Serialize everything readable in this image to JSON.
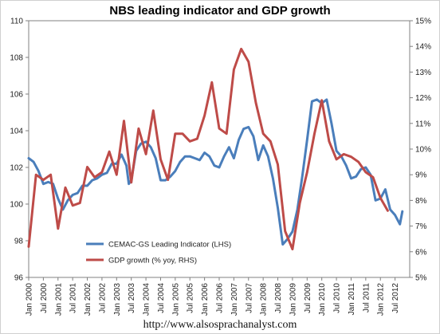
{
  "chart_data": {
    "type": "line",
    "title": "NBS leading indicator and GDP growth",
    "source": "http://www.alsosprachanalyst.com",
    "x_ticks": [
      "Jan 2000",
      "Jul 2000",
      "Jan 2001",
      "Jul 2001",
      "Jan 2002",
      "Jul 2002",
      "Jan 2003",
      "Jul 2003",
      "Jan 2004",
      "Jul 2004",
      "Jan 2005",
      "Jul 2005",
      "Jan 2006",
      "Jul 2006",
      "Jan 2007",
      "Jul 2007",
      "Jan 2008",
      "Jul 2008",
      "Jan 2009",
      "Jul 2009",
      "Jan 2010",
      "Jul 2010",
      "Jan 2011",
      "Jul 2011",
      "Jan 2012",
      "Jul 2012"
    ],
    "y_left": {
      "min": 96,
      "max": 110,
      "step": 2,
      "ticks": [
        "96",
        "98",
        "100",
        "102",
        "104",
        "106",
        "108",
        "110"
      ]
    },
    "y_right": {
      "min": 5,
      "max": 15,
      "step": 1,
      "ticks": [
        "5%",
        "6%",
        "7%",
        "8%",
        "9%",
        "10%",
        "11%",
        "12%",
        "13%",
        "14%",
        "15%"
      ]
    },
    "series": [
      {
        "name": "CEMAC-GS Leading Indicator (LHS)",
        "axis": "left",
        "color": "#4a7ebb",
        "points": [
          [
            "2000-01",
            102.5
          ],
          [
            "2000-03",
            102.3
          ],
          [
            "2000-05",
            101.8
          ],
          [
            "2000-07",
            101.1
          ],
          [
            "2000-09",
            101.2
          ],
          [
            "2000-11",
            101.1
          ],
          [
            "2001-01",
            100.3
          ],
          [
            "2001-03",
            99.7
          ],
          [
            "2001-05",
            100.2
          ],
          [
            "2001-07",
            100.5
          ],
          [
            "2001-09",
            100.6
          ],
          [
            "2001-11",
            101.0
          ],
          [
            "2002-01",
            101.0
          ],
          [
            "2002-03",
            101.3
          ],
          [
            "2002-05",
            101.4
          ],
          [
            "2002-07",
            101.6
          ],
          [
            "2002-09",
            101.7
          ],
          [
            "2002-11",
            102.2
          ],
          [
            "2003-01",
            102.2
          ],
          [
            "2003-03",
            102.7
          ],
          [
            "2003-05",
            102.1
          ],
          [
            "2003-06",
            101.1
          ],
          [
            "2003-07",
            101.3
          ],
          [
            "2003-09",
            102.9
          ],
          [
            "2003-11",
            103.3
          ],
          [
            "2004-01",
            103.4
          ],
          [
            "2004-03",
            103.1
          ],
          [
            "2004-05",
            102.5
          ],
          [
            "2004-07",
            101.3
          ],
          [
            "2004-09",
            101.3
          ],
          [
            "2004-11",
            101.5
          ],
          [
            "2005-01",
            101.8
          ],
          [
            "2005-03",
            102.3
          ],
          [
            "2005-05",
            102.6
          ],
          [
            "2005-07",
            102.6
          ],
          [
            "2005-09",
            102.5
          ],
          [
            "2005-11",
            102.4
          ],
          [
            "2006-01",
            102.8
          ],
          [
            "2006-03",
            102.6
          ],
          [
            "2006-05",
            102.1
          ],
          [
            "2006-07",
            102.0
          ],
          [
            "2006-09",
            102.6
          ],
          [
            "2006-11",
            103.1
          ],
          [
            "2007-01",
            102.5
          ],
          [
            "2007-03",
            103.5
          ],
          [
            "2007-05",
            104.1
          ],
          [
            "2007-07",
            104.2
          ],
          [
            "2007-09",
            103.7
          ],
          [
            "2007-11",
            102.4
          ],
          [
            "2008-01",
            103.2
          ],
          [
            "2008-03",
            102.6
          ],
          [
            "2008-05",
            101.4
          ],
          [
            "2008-07",
            99.8
          ],
          [
            "2008-09",
            97.8
          ],
          [
            "2008-11",
            98.1
          ],
          [
            "2009-01",
            98.5
          ],
          [
            "2009-03",
            99.7
          ],
          [
            "2009-05",
            101.5
          ],
          [
            "2009-07",
            103.5
          ],
          [
            "2009-09",
            105.6
          ],
          [
            "2009-11",
            105.7
          ],
          [
            "2010-01",
            105.5
          ],
          [
            "2010-03",
            105.7
          ],
          [
            "2010-05",
            104.4
          ],
          [
            "2010-07",
            102.9
          ],
          [
            "2010-09",
            102.6
          ],
          [
            "2010-11",
            102.1
          ],
          [
            "2011-01",
            101.4
          ],
          [
            "2011-03",
            101.5
          ],
          [
            "2011-05",
            101.9
          ],
          [
            "2011-07",
            102.0
          ],
          [
            "2011-09",
            101.6
          ],
          [
            "2011-11",
            100.2
          ],
          [
            "2012-01",
            100.3
          ],
          [
            "2012-03",
            100.8
          ],
          [
            "2012-05",
            99.7
          ],
          [
            "2012-07",
            99.4
          ],
          [
            "2012-09",
            98.9
          ],
          [
            "2012-10",
            99.6
          ]
        ]
      },
      {
        "name": "GDP growth (% yoy, RHS)",
        "axis": "right",
        "color": "#be4b48",
        "points": [
          [
            "2000-01",
            6.2
          ],
          [
            "2000-04",
            9.0
          ],
          [
            "2000-07",
            8.8
          ],
          [
            "2000-10",
            9.0
          ],
          [
            "2001-01",
            6.9
          ],
          [
            "2001-04",
            8.5
          ],
          [
            "2001-07",
            7.8
          ],
          [
            "2001-10",
            7.9
          ],
          [
            "2002-01",
            9.3
          ],
          [
            "2002-04",
            8.9
          ],
          [
            "2002-07",
            9.1
          ],
          [
            "2002-10",
            9.9
          ],
          [
            "2003-01",
            9.0
          ],
          [
            "2003-04",
            11.1
          ],
          [
            "2003-07",
            8.7
          ],
          [
            "2003-10",
            10.8
          ],
          [
            "2004-01",
            9.8
          ],
          [
            "2004-04",
            11.5
          ],
          [
            "2004-07",
            9.6
          ],
          [
            "2004-10",
            8.8
          ],
          [
            "2005-01",
            10.6
          ],
          [
            "2005-04",
            10.6
          ],
          [
            "2005-07",
            10.3
          ],
          [
            "2005-10",
            10.4
          ],
          [
            "2006-01",
            11.3
          ],
          [
            "2006-04",
            12.6
          ],
          [
            "2006-07",
            10.8
          ],
          [
            "2006-10",
            10.6
          ],
          [
            "2007-01",
            13.1
          ],
          [
            "2007-04",
            13.9
          ],
          [
            "2007-07",
            13.4
          ],
          [
            "2007-10",
            11.8
          ],
          [
            "2008-01",
            10.6
          ],
          [
            "2008-04",
            10.3
          ],
          [
            "2008-07",
            9.4
          ],
          [
            "2008-10",
            6.8
          ],
          [
            "2009-01",
            6.1
          ],
          [
            "2009-04",
            7.9
          ],
          [
            "2009-07",
            9.1
          ],
          [
            "2009-10",
            10.6
          ],
          [
            "2010-01",
            11.9
          ],
          [
            "2010-04",
            10.3
          ],
          [
            "2010-07",
            9.6
          ],
          [
            "2010-10",
            9.8
          ],
          [
            "2011-01",
            9.7
          ],
          [
            "2011-04",
            9.5
          ],
          [
            "2011-07",
            9.1
          ],
          [
            "2011-10",
            8.9
          ],
          [
            "2012-01",
            8.1
          ],
          [
            "2012-04",
            7.6
          ]
        ]
      }
    ],
    "legend_position": "lower-left",
    "grid": false
  }
}
